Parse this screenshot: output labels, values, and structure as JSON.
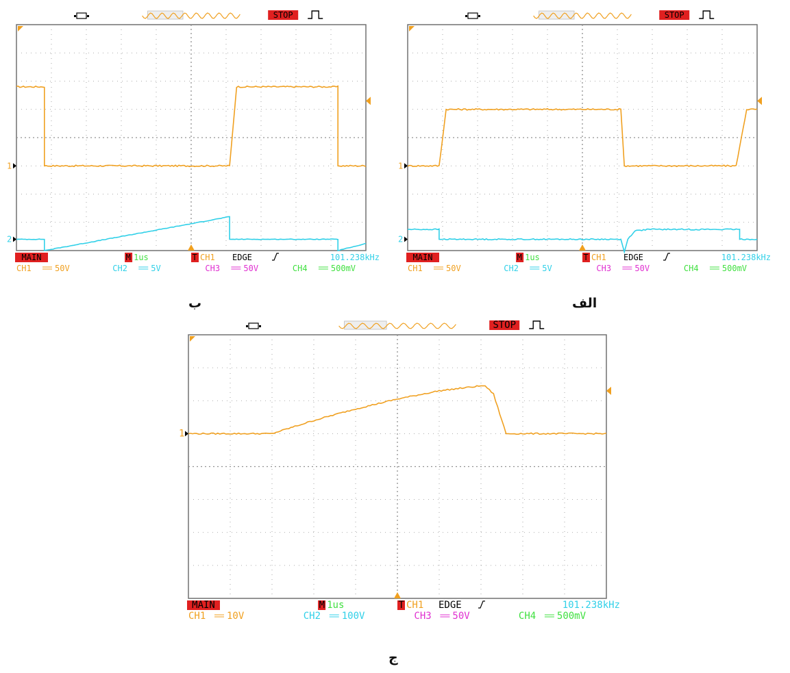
{
  "colors": {
    "ch1": "#f0a020",
    "ch2": "#30d0e8",
    "ch3": "#e030d0",
    "ch4": "#40e040",
    "red": "#e02020",
    "grid": "#909090",
    "frame": "#707070",
    "white_text": "#ffffff",
    "dark_text": "#000000"
  },
  "chart_data": [
    {
      "id": "b",
      "type": "line",
      "caption": "ب",
      "status": "STOP",
      "readout": {
        "main": "MAIN",
        "m_tag": "M",
        "timebase": "1us",
        "t_tag": "T",
        "trig_src": "CH1",
        "trig_mode": "EDGE",
        "frequency": "101.238kHz",
        "ch_labels": [
          "CH1",
          "CH2",
          "CH3",
          "CH4"
        ],
        "ch_scales": [
          "50V",
          "5V",
          "50V",
          "500mV"
        ]
      },
      "marker_labels": [
        "1",
        "2"
      ],
      "markers_div": [
        -1,
        -3.6
      ],
      "trigger_level_div": 1.3,
      "xlim_div": [
        -5,
        5
      ],
      "ylim_div": [
        -4,
        4
      ],
      "grid": true,
      "series": [
        {
          "color": "ch1",
          "noise": 0.05,
          "x": [
            -5,
            -4.2,
            -4.2,
            1.1,
            1.3,
            4.2,
            4.2,
            5
          ],
          "y": [
            1.8,
            1.8,
            -1,
            -1,
            1.8,
            1.8,
            -1,
            -1
          ]
        },
        {
          "color": "ch2",
          "noise": 0.02,
          "x": [
            -5,
            -4.2,
            -4.2,
            1.1,
            1.1,
            4.2,
            4.2,
            5
          ],
          "y": [
            -3.6,
            -3.6,
            -4,
            -2.8,
            -3.6,
            -3.6,
            -4,
            -3.75
          ]
        }
      ]
    },
    {
      "id": "alef",
      "type": "line",
      "caption": "الف",
      "status": "STOP",
      "readout": {
        "main": "MAIN",
        "m_tag": "M",
        "timebase": "1us",
        "t_tag": "T",
        "trig_src": "CH1",
        "trig_mode": "EDGE",
        "frequency": "101.238kHz",
        "ch_labels": [
          "CH1",
          "CH2",
          "CH3",
          "CH4"
        ],
        "ch_scales": [
          "50V",
          "5V",
          "50V",
          "500mV"
        ]
      },
      "marker_labels": [
        "1",
        "2"
      ],
      "markers_div": [
        -1,
        -3.6
      ],
      "trigger_level_div": 1.3,
      "xlim_div": [
        -5,
        5
      ],
      "ylim_div": [
        -4,
        4
      ],
      "grid": true,
      "series": [
        {
          "color": "ch1",
          "noise": 0.05,
          "x": [
            -5,
            -4.1,
            -3.9,
            1.1,
            1.2,
            4.4,
            4.7,
            5
          ],
          "y": [
            -1,
            -1,
            1.0,
            1.0,
            -1,
            -1,
            1.0,
            1.0
          ]
        },
        {
          "color": "ch2",
          "noise": 0.04,
          "x": [
            -5,
            -4.1,
            -4.1,
            1.1,
            1.2,
            1.3,
            1.5,
            1.9,
            4.5,
            4.5,
            5
          ],
          "y": [
            -3.25,
            -3.25,
            -3.6,
            -3.6,
            -4.05,
            -3.6,
            -3.3,
            -3.25,
            -3.25,
            -3.6,
            -3.6
          ]
        }
      ]
    },
    {
      "id": "jim",
      "type": "line",
      "caption": "ج",
      "status": "STOP",
      "readout": {
        "main": "MAIN",
        "m_tag": "M",
        "timebase": "1us",
        "t_tag": "T",
        "trig_src": "CH1",
        "trig_mode": "EDGE",
        "frequency": "101.238kHz",
        "ch_labels": [
          "CH1",
          "CH2",
          "CH3",
          "CH4"
        ],
        "ch_scales": [
          "10V",
          "100V",
          "50V",
          "500mV"
        ]
      },
      "marker_labels": [
        "1"
      ],
      "markers_div": [
        1
      ],
      "trigger_level_div": 2.3,
      "xlim_div": [
        -5,
        5
      ],
      "ylim_div": [
        -4,
        4
      ],
      "grid": true,
      "series": [
        {
          "color": "ch1",
          "noise": 0.04,
          "x": [
            -5,
            -3,
            -2,
            -1,
            0,
            1,
            2,
            2.1,
            2.3,
            2.6,
            5
          ],
          "y": [
            1,
            1,
            1.4,
            1.75,
            2.05,
            2.3,
            2.45,
            2.45,
            2.2,
            1.0,
            1.0
          ]
        }
      ]
    }
  ]
}
